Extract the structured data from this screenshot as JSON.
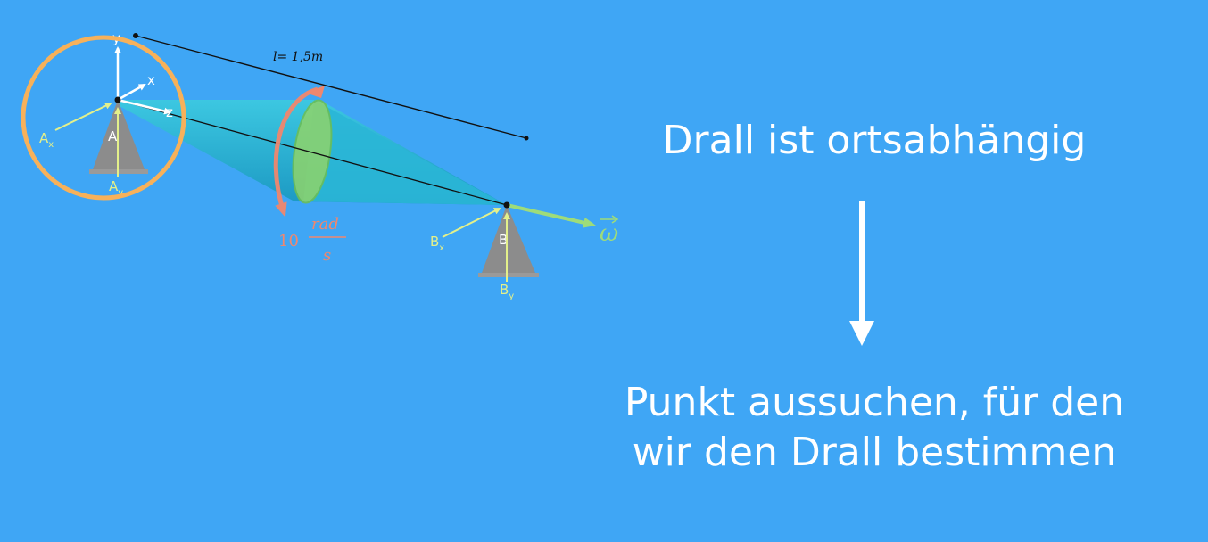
{
  "colors": {
    "background": "#3fa6f5",
    "white": "#ffffff",
    "highlight_circle": "#f7b15a",
    "cone": "#1fb5d0",
    "cone_dark": "#1794b8",
    "disk": "#8fd46a",
    "rotation_arrow": "#f0876e",
    "reaction_force": "#e3f08a",
    "omega": "#9edc7a",
    "support": "#8c8c8c"
  },
  "diagram": {
    "length_label": "l= 1,5m",
    "axis_y": "y",
    "axis_x": "x",
    "axis_z": "z",
    "support_a": "A",
    "support_b": "B",
    "force_ax_main": "A",
    "force_ax_sub": "x",
    "force_ay_main": "A",
    "force_ay_sub": "y",
    "force_bx_main": "B",
    "force_bx_sub": "x",
    "force_by_main": "B",
    "force_by_sub": "y",
    "angular_speed_value": "10",
    "angular_speed_num": "rad",
    "angular_speed_den": "s",
    "omega_symbol": "ω"
  },
  "statement": {
    "headline": "Drall ist ortsabhängig",
    "conclusion": "Punkt aussuchen, für den wir den Drall bestimmen"
  }
}
